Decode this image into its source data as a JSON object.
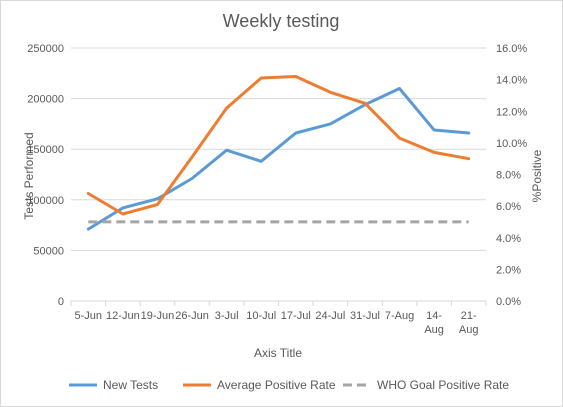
{
  "chart_data": {
    "type": "line",
    "title": "Weekly testing",
    "xlabel": "Axis Title",
    "ylabel": "Tests Performed",
    "y2label": "%Positive",
    "categories": [
      "5-Jun",
      "12-Jun",
      "19-Jun",
      "26-Jun",
      "3-Jul",
      "10-Jul",
      "17-Jul",
      "24-Jul",
      "31-Jul",
      "7-Aug",
      "14-Aug",
      "21-Aug"
    ],
    "category_lines": [
      [
        "5-Jun"
      ],
      [
        "12-Jun"
      ],
      [
        "19-Jun"
      ],
      [
        "26-Jun"
      ],
      [
        "3-Jul"
      ],
      [
        "10-Jul"
      ],
      [
        "17-Jul"
      ],
      [
        "24-Jul"
      ],
      [
        "31-Jul"
      ],
      [
        "7-Aug"
      ],
      [
        "14-",
        "Aug"
      ],
      [
        "21-",
        "Aug"
      ]
    ],
    "ylim": [
      0,
      250000
    ],
    "yticks": [
      0,
      50000,
      100000,
      150000,
      200000,
      250000
    ],
    "ytick_labels": [
      "0",
      "50000",
      "100000",
      "150000",
      "200000",
      "250000"
    ],
    "y2lim": [
      0,
      16
    ],
    "y2ticks": [
      0,
      2,
      4,
      6,
      8,
      10,
      12,
      14,
      16
    ],
    "y2tick_labels": [
      "0.0%",
      "2.0%",
      "4.0%",
      "6.0%",
      "8.0%",
      "10.0%",
      "12.0%",
      "14.0%",
      "16.0%"
    ],
    "grid": true,
    "legend_position": "bottom",
    "series": [
      {
        "name": "New Tests",
        "axis": "left",
        "color": "#5b9bd5",
        "dashed": false,
        "values": [
          71000,
          92000,
          101000,
          121000,
          149000,
          138000,
          166000,
          175000,
          194000,
          210000,
          169000,
          166000
        ]
      },
      {
        "name": "Average Positive Rate",
        "axis": "right",
        "color": "#ed7d31",
        "dashed": false,
        "values": [
          6.8,
          5.5,
          6.1,
          9.1,
          12.2,
          14.1,
          14.2,
          13.2,
          12.5,
          10.3,
          9.4,
          9.0
        ]
      },
      {
        "name": "WHO Goal Positive Rate",
        "axis": "right",
        "color": "#a5a5a5",
        "dashed": true,
        "values": [
          5,
          5,
          5,
          5,
          5,
          5,
          5,
          5,
          5,
          5,
          5,
          5
        ]
      }
    ]
  }
}
